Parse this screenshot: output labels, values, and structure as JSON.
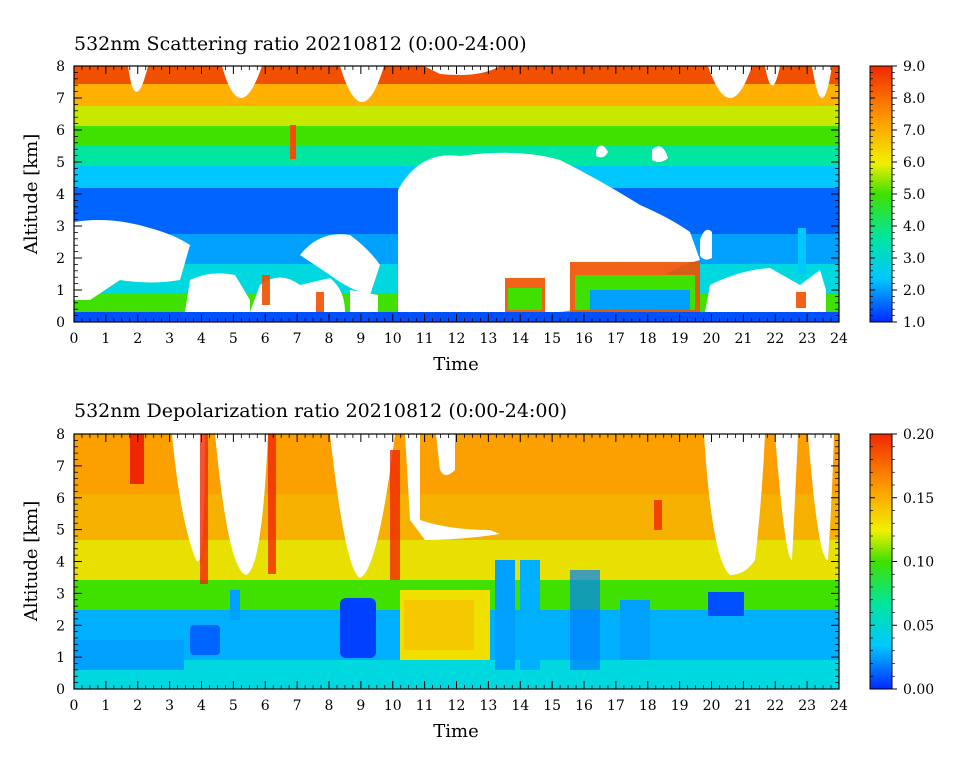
{
  "chart_data": [
    {
      "type": "heatmap",
      "title": "532nm Scattering ratio  20210812 (0:00-24:00)",
      "xlabel": "Time",
      "ylabel": "Altitude [km]",
      "xlim": [
        0,
        24
      ],
      "ylim": [
        0,
        8
      ],
      "xticks": [
        "0",
        "1",
        "2",
        "3",
        "4",
        "5",
        "6",
        "7",
        "8",
        "9",
        "10",
        "11",
        "12",
        "13",
        "14",
        "15",
        "16",
        "17",
        "18",
        "19",
        "20",
        "21",
        "22",
        "23",
        "24"
      ],
      "yticks": [
        "0",
        "1",
        "2",
        "3",
        "4",
        "5",
        "6",
        "7",
        "8"
      ],
      "colorbar": {
        "range": [
          1.0,
          9.0
        ],
        "ticks": [
          "1.0",
          "2.0",
          "3.0",
          "4.0",
          "5.0",
          "6.0",
          "7.0",
          "8.0",
          "9.0"
        ],
        "colors": [
          "#0028ff",
          "#00c8ff",
          "#00e6a0",
          "#40e000",
          "#f0f000",
          "#ff9600",
          "#f02800"
        ]
      },
      "missing_color": "#ffffff",
      "grid": false
    },
    {
      "type": "heatmap",
      "title": "532nm Depolarization ratio  20210812 (0:00-24:00)",
      "xlabel": "Time",
      "ylabel": "Altitude [km]",
      "xlim": [
        0,
        24
      ],
      "ylim": [
        0,
        8
      ],
      "xticks": [
        "0",
        "1",
        "2",
        "3",
        "4",
        "5",
        "6",
        "7",
        "8",
        "9",
        "10",
        "11",
        "12",
        "13",
        "14",
        "15",
        "16",
        "17",
        "18",
        "19",
        "20",
        "21",
        "22",
        "23",
        "24"
      ],
      "yticks": [
        "0",
        "1",
        "2",
        "3",
        "4",
        "5",
        "6",
        "7",
        "8"
      ],
      "colorbar": {
        "range": [
          0.0,
          0.2
        ],
        "ticks": [
          "0.00",
          "0.05",
          "0.10",
          "0.15",
          "0.20"
        ],
        "colors": [
          "#0028ff",
          "#00c8ff",
          "#00e6a0",
          "#40e000",
          "#f0f000",
          "#ff9600",
          "#f02800"
        ]
      },
      "missing_color": "#ffffff",
      "grid": false
    }
  ]
}
